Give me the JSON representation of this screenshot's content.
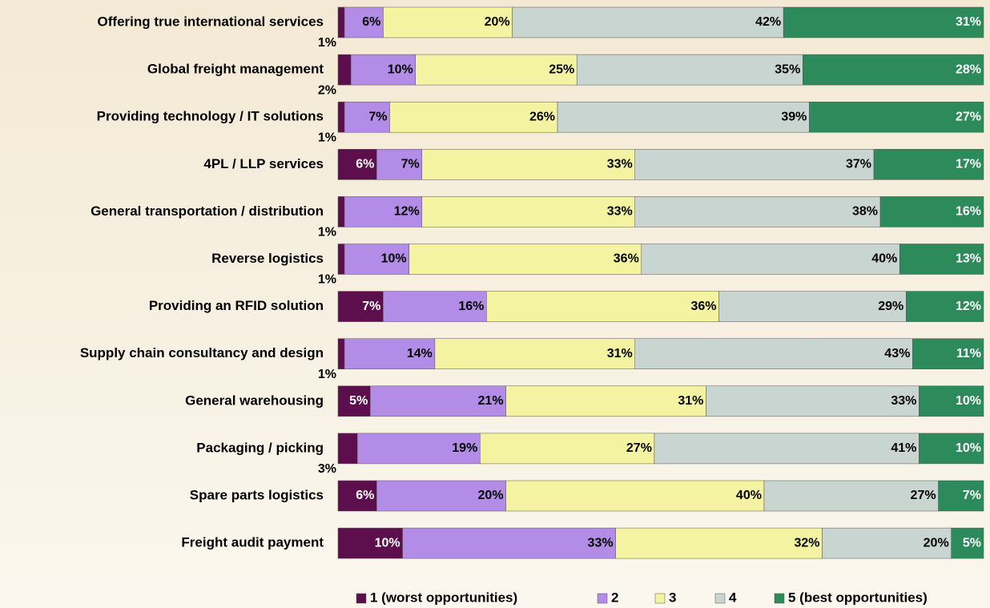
{
  "chart_data": {
    "type": "stacked-bar-horizontal",
    "categories": [
      "Offering true international services",
      "Global freight management",
      "Providing technology / IT solutions",
      "4PL / LLP services",
      "General transportation / distribution",
      "Reverse logistics",
      "Providing an RFID solution",
      "Supply chain consultancy and design",
      "General warehousing",
      "Packaging / picking",
      "Spare parts logistics",
      "Freight audit payment"
    ],
    "xlim": [
      0,
      100
    ],
    "legend": "bottom",
    "series": [
      {
        "name": "1 (worst opportunities)",
        "color": "#5c0f4c",
        "values": [
          1,
          2,
          1,
          6,
          1,
          1,
          7,
          1,
          5,
          3,
          6,
          10
        ],
        "value_labels": [
          "1%",
          "2%",
          "1%",
          "6%",
          "1%",
          "1%",
          "7%",
          "1%",
          "5%",
          "3%",
          "6%",
          "10%"
        ]
      },
      {
        "name": "2",
        "color": "#b28ce6",
        "values": [
          6,
          10,
          7,
          7,
          12,
          10,
          16,
          14,
          21,
          19,
          20,
          33
        ],
        "value_labels": [
          "6%",
          "10%",
          "7%",
          "7%",
          "12%",
          "10%",
          "16%",
          "14%",
          "21%",
          "19%",
          "20%",
          "33%"
        ]
      },
      {
        "name": "3",
        "color": "#f4f3a2",
        "values": [
          20,
          25,
          26,
          33,
          33,
          36,
          36,
          31,
          31,
          27,
          40,
          32
        ],
        "value_labels": [
          "20%",
          "25%",
          "26%",
          "33%",
          "33%",
          "36%",
          "36%",
          "31%",
          "31%",
          "27%",
          "40%",
          "32%"
        ]
      },
      {
        "name": "4",
        "color": "#c9d5d1",
        "values": [
          42,
          35,
          39,
          37,
          38,
          40,
          29,
          43,
          33,
          41,
          27,
          20
        ],
        "value_labels": [
          "42%",
          "35%",
          "39%",
          "37%",
          "38%",
          "40%",
          "29%",
          "43%",
          "33%",
          "41%",
          "27%",
          "20%"
        ]
      },
      {
        "name": "5 (best opportunities)",
        "color": "#2d8a5b",
        "values": [
          31,
          28,
          27,
          17,
          16,
          13,
          12,
          11,
          10,
          10,
          7,
          5
        ],
        "value_labels": [
          "31%",
          "28%",
          "27%",
          "17%",
          "16%",
          "13%",
          "12%",
          "11%",
          "10%",
          "10%",
          "7%",
          "5%"
        ]
      }
    ]
  }
}
